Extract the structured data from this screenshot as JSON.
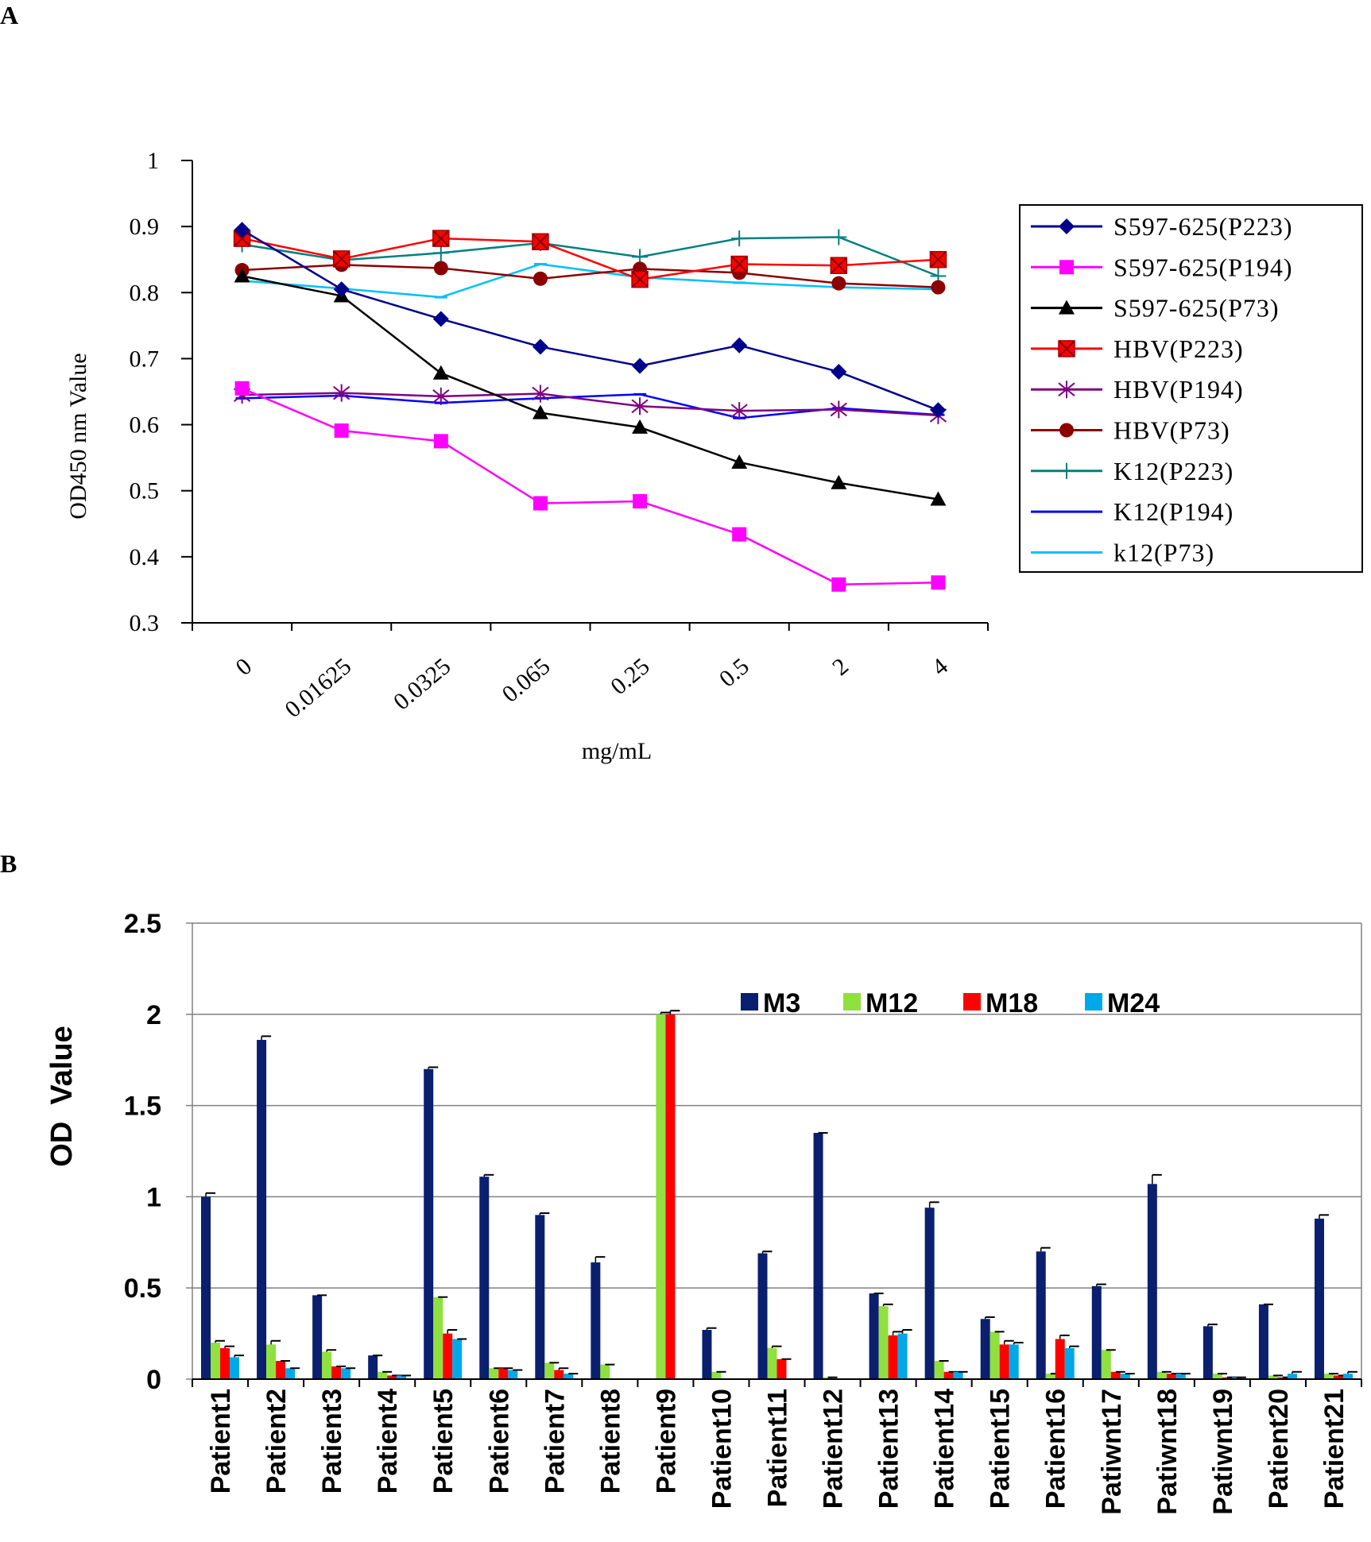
{
  "panels": {
    "a_label": "A",
    "b_label": "B"
  },
  "chart_data": [
    {
      "type": "line",
      "panel": "A",
      "title": "",
      "xlabel": "mg/mL",
      "ylabel": "OD450 nm Value",
      "ylim": [
        0.3,
        1
      ],
      "yticks": [
        "0.3",
        "0.4",
        "0.5",
        "0.6",
        "0.7",
        "0.8",
        "0.9",
        "1"
      ],
      "categories": [
        "0",
        "0.01625",
        "0.0325",
        "0.065",
        "0.25",
        "0.5",
        "2",
        "4"
      ],
      "legend_position": "right",
      "series": [
        {
          "name": "S597-625(P223)",
          "color": "#00008B",
          "marker": "diamond",
          "values": [
            0.895,
            0.805,
            0.76,
            0.718,
            0.689,
            0.72,
            0.68,
            0.622
          ]
        },
        {
          "name": "S597-625(P194)",
          "color": "#FF00FF",
          "marker": "square",
          "values": [
            0.655,
            0.591,
            0.575,
            0.481,
            0.484,
            0.434,
            0.358,
            0.361
          ]
        },
        {
          "name": "S597-625(P73)",
          "color": "#000000",
          "marker": "triangle",
          "values": [
            0.825,
            0.795,
            0.678,
            0.618,
            0.596,
            0.543,
            0.512,
            0.487
          ]
        },
        {
          "name": "HBV(P223)",
          "color": "#FF0000",
          "marker": "xsquare",
          "values": [
            0.882,
            0.851,
            0.882,
            0.877,
            0.82,
            0.843,
            0.841,
            0.85
          ]
        },
        {
          "name": "HBV(P194)",
          "color": "#800080",
          "marker": "asterisk",
          "values": [
            0.645,
            0.648,
            0.643,
            0.647,
            0.628,
            0.621,
            0.623,
            0.614
          ]
        },
        {
          "name": "HBV(P73)",
          "color": "#8B0000",
          "marker": "circle",
          "values": [
            0.834,
            0.842,
            0.837,
            0.821,
            0.836,
            0.83,
            0.814,
            0.808
          ]
        },
        {
          "name": "K12(P223)",
          "color": "#008080",
          "marker": "plus",
          "values": [
            0.873,
            0.849,
            0.86,
            0.875,
            0.854,
            0.882,
            0.884,
            0.825
          ]
        },
        {
          "name": "K12(P194)",
          "color": "#0000FF",
          "marker": "dash",
          "values": [
            0.64,
            0.644,
            0.633,
            0.64,
            0.646,
            0.61,
            0.625,
            0.615
          ]
        },
        {
          "name": "k12(P73)",
          "color": "#00BFFF",
          "marker": "dash",
          "values": [
            0.818,
            0.806,
            0.793,
            0.843,
            0.823,
            0.815,
            0.808,
            0.805
          ]
        }
      ]
    },
    {
      "type": "bar",
      "panel": "B",
      "title": "",
      "xlabel": "",
      "ylabel": "OD  Value",
      "ylim": [
        0,
        2.5
      ],
      "yticks": [
        "0",
        "0.5",
        "1",
        "1.5",
        "2",
        "2.5"
      ],
      "grid": true,
      "legend_position": "top-center",
      "categories": [
        "Patient1",
        "Patient2",
        "Patient3",
        "Patient4",
        "Patient5",
        "Patient6",
        "Patient7",
        "Patient8",
        "Patient9",
        "Patient10",
        "Patient11",
        "Patient12",
        "Patient13",
        "Patient14",
        "Patient15",
        "Patient16",
        "Patiwnt17",
        "Patiwnt18",
        "Patiwnt19",
        "Patient20",
        "Patient21"
      ],
      "series": [
        {
          "name": "M3",
          "color": "#0A1F6E",
          "values": [
            1.0,
            1.86,
            0.46,
            0.13,
            1.7,
            1.11,
            0.9,
            0.64,
            0.0,
            0.27,
            0.69,
            1.35,
            0.47,
            0.94,
            0.33,
            0.7,
            0.51,
            1.07,
            0.29,
            0.41,
            0.88
          ]
        },
        {
          "name": "M12",
          "color": "#90E040",
          "values": [
            0.2,
            0.19,
            0.15,
            0.04,
            0.45,
            0.06,
            0.09,
            0.08,
            2.0,
            0.04,
            0.17,
            0.01,
            0.4,
            0.1,
            0.26,
            0.03,
            0.16,
            0.04,
            0.03,
            0.02,
            0.03
          ]
        },
        {
          "name": "M18",
          "color": "#FF0000",
          "values": [
            0.17,
            0.1,
            0.07,
            0.02,
            0.25,
            0.06,
            0.05,
            0.0,
            2.0,
            0.0,
            0.11,
            0.0,
            0.24,
            0.04,
            0.19,
            0.22,
            0.04,
            0.03,
            0.01,
            0.01,
            0.02
          ]
        },
        {
          "name": "M24",
          "color": "#00A8E8",
          "values": [
            0.12,
            0.06,
            0.06,
            0.02,
            0.22,
            0.05,
            0.03,
            0.0,
            0.0,
            0.0,
            0.0,
            0.0,
            0.25,
            0.04,
            0.19,
            0.17,
            0.03,
            0.03,
            0.01,
            0.03,
            0.03
          ]
        }
      ],
      "error_bars": [
        [
          0.02,
          0.02,
          0.0,
          0.0,
          0.01,
          0.01,
          0.01,
          0.03,
          0.0,
          0.01,
          0.01,
          0.0,
          0.0,
          0.03,
          0.01,
          0.02,
          0.01,
          0.05,
          0.01,
          0.0,
          0.02
        ],
        [
          0.01,
          0.02,
          0.01,
          0.0,
          0.0,
          0.0,
          0.0,
          0.0,
          0.01,
          0.0,
          0.01,
          0.0,
          0.01,
          0.0,
          0.0,
          0.0,
          0.0,
          0.0,
          0.0,
          0.0,
          0.0
        ],
        [
          0.01,
          0.0,
          0.0,
          0.0,
          0.02,
          0.0,
          0.01,
          0.0,
          0.02,
          0.0,
          0.0,
          0.0,
          0.02,
          0.0,
          0.02,
          0.02,
          0.0,
          0.0,
          0.0,
          0.0,
          0.0
        ],
        [
          0.01,
          0.0,
          0.0,
          0.0,
          0.0,
          0.0,
          0.0,
          0.0,
          0.0,
          0.0,
          0.0,
          0.0,
          0.02,
          0.0,
          0.01,
          0.01,
          0.0,
          0.0,
          0.0,
          0.01,
          0.01
        ]
      ]
    }
  ]
}
